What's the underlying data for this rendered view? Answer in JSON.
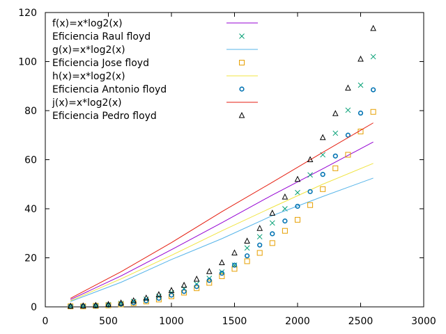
{
  "chart_data": {
    "type": "scatter",
    "xlim": [
      0,
      3000
    ],
    "ylim": [
      0,
      120
    ],
    "xticks": [
      0,
      500,
      1000,
      1500,
      2000,
      2500,
      3000
    ],
    "yticks": [
      0,
      20,
      40,
      60,
      80,
      100,
      120
    ],
    "grid": false,
    "legend_position": "top-left",
    "series": [
      {
        "name": "f(x)=x*log2(x)",
        "kind": "line",
        "color": "#9400d3",
        "x": [
          200,
          600,
          1000,
          1400,
          1800,
          2200,
          2600
        ],
        "y": [
          3.0,
          12.6,
          23.3,
          34.3,
          45.6,
          56.3,
          67.2
        ]
      },
      {
        "name": "Eficiencia Raul floyd",
        "kind": "points",
        "marker": "x",
        "color": "#009e73",
        "x": [
          200,
          300,
          400,
          500,
          600,
          700,
          800,
          900,
          1000,
          1100,
          1200,
          1300,
          1400,
          1500,
          1600,
          1700,
          1800,
          1900,
          2000,
          2100,
          2200,
          2300,
          2400,
          2500,
          2600
        ],
        "y": [
          0.3,
          0.3,
          0.5,
          0.9,
          1.4,
          2.2,
          3.1,
          4.3,
          5.8,
          7.4,
          9.3,
          11.6,
          14.2,
          17.0,
          24.0,
          28.6,
          34.2,
          40.0,
          46.6,
          53.8,
          62.0,
          70.8,
          80.2,
          90.4,
          102.0
        ]
      },
      {
        "name": "g(x)=x*log2(x)",
        "kind": "line",
        "color": "#56b4e9",
        "x": [
          200,
          600,
          1000,
          1400,
          1800,
          2200,
          2600
        ],
        "y": [
          2.2,
          10.0,
          19.3,
          27.8,
          37.2,
          45.0,
          52.5
        ]
      },
      {
        "name": "Eficiencia Jose floyd",
        "kind": "points",
        "marker": "square",
        "color": "#e69f00",
        "x": [
          200,
          300,
          400,
          500,
          600,
          700,
          800,
          900,
          1000,
          1100,
          1200,
          1300,
          1400,
          1500,
          1600,
          1700,
          1800,
          1900,
          2000,
          2100,
          2200,
          2300,
          2400,
          2500,
          2600
        ],
        "y": [
          0.2,
          0.2,
          0.4,
          0.6,
          1.0,
          1.5,
          2.2,
          3.0,
          4.3,
          5.8,
          7.6,
          9.8,
          12.5,
          15.5,
          18.6,
          22.0,
          26.0,
          31.0,
          35.5,
          41.5,
          48.0,
          56.5,
          62.0,
          71.5,
          79.5
        ]
      },
      {
        "name": "h(x)=x*log2(x)",
        "kind": "line",
        "color": "#f0e442",
        "x": [
          200,
          600,
          1000,
          1400,
          1800,
          2200,
          2600
        ],
        "y": [
          2.5,
          11.4,
          21.0,
          31.0,
          40.6,
          50.0,
          58.5
        ]
      },
      {
        "name": "Eficiencia Antonio floyd",
        "kind": "points",
        "marker": "circle",
        "color": "#0072b2",
        "x": [
          200,
          300,
          400,
          500,
          600,
          700,
          800,
          900,
          1000,
          1100,
          1200,
          1300,
          1400,
          1500,
          1600,
          1700,
          1800,
          1900,
          2000,
          2100,
          2200,
          2300,
          2400,
          2500,
          2600
        ],
        "y": [
          0.2,
          0.3,
          0.4,
          0.7,
          1.1,
          1.7,
          2.5,
          3.5,
          4.8,
          6.3,
          8.3,
          10.8,
          13.7,
          17.0,
          20.8,
          25.2,
          29.8,
          35.0,
          41.0,
          47.0,
          54.0,
          61.5,
          70.0,
          79.0,
          88.5
        ]
      },
      {
        "name": "j(x)=x*log2(x)",
        "kind": "line",
        "color": "#e51e10",
        "x": [
          200,
          600,
          1000,
          1400,
          1800,
          2200,
          2600
        ],
        "y": [
          3.5,
          14.3,
          26.2,
          38.8,
          50.8,
          63.0,
          75.0
        ]
      },
      {
        "name": "Eficiencia Pedro floyd",
        "kind": "points",
        "marker": "triangle",
        "color": "#000000",
        "x": [
          200,
          300,
          400,
          500,
          600,
          700,
          800,
          900,
          1000,
          1100,
          1200,
          1300,
          1400,
          1500,
          1600,
          1700,
          1800,
          1900,
          2000,
          2100,
          2200,
          2300,
          2400,
          2500,
          2600
        ],
        "y": [
          0.3,
          0.4,
          0.6,
          1.0,
          1.6,
          2.5,
          3.6,
          5.0,
          6.7,
          8.8,
          11.3,
          14.4,
          18.0,
          22.0,
          26.8,
          32.0,
          38.2,
          44.8,
          52.0,
          60.0,
          69.0,
          78.8,
          89.2,
          101.0,
          113.5
        ]
      }
    ]
  }
}
